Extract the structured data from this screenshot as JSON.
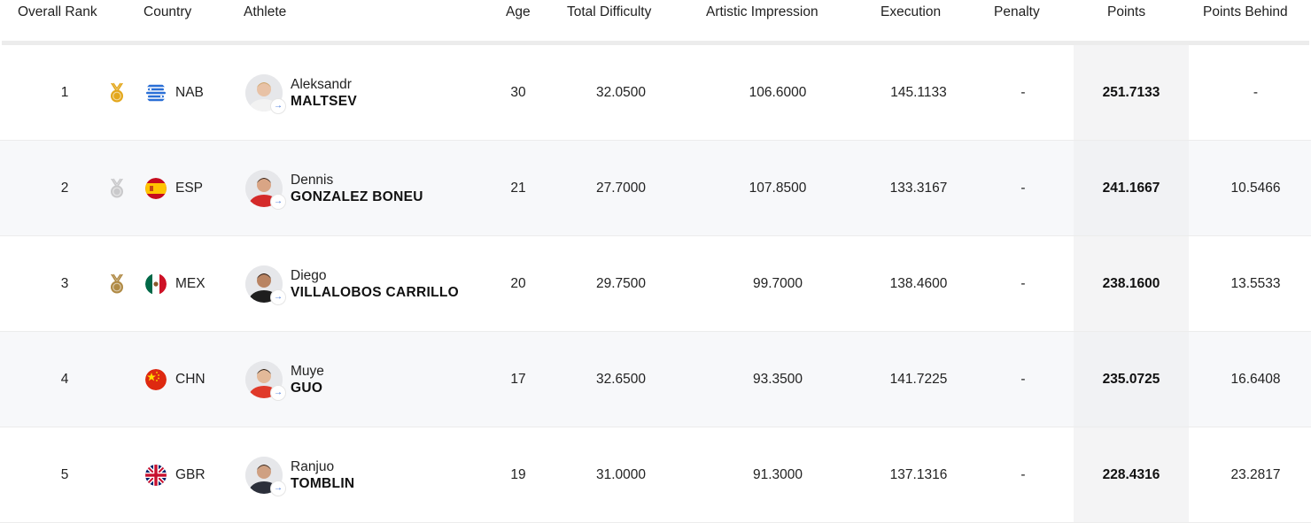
{
  "columns": {
    "rank": "Overall Rank",
    "country": "Country",
    "athlete": "Athlete",
    "age": "Age",
    "difficulty": "Total Difficulty",
    "artistic": "Artistic Impression",
    "execution": "Execution",
    "penalty": "Penalty",
    "points": "Points",
    "behind": "Points Behind"
  },
  "rows": [
    {
      "rank": "1",
      "medal": "gold-medal-icon",
      "flag": "nab-flag-icon",
      "country": "NAB",
      "given": "Aleksandr",
      "family": "MALTSEV",
      "age": "30",
      "difficulty": "32.0500",
      "artistic": "106.6000",
      "execution": "145.1133",
      "penalty": "-",
      "points": "251.7133",
      "behind": "-"
    },
    {
      "rank": "2",
      "medal": "silver-medal-icon",
      "flag": "spain-flag-icon",
      "country": "ESP",
      "given": "Dennis",
      "family": "GONZALEZ BONEU",
      "age": "21",
      "difficulty": "27.7000",
      "artistic": "107.8500",
      "execution": "133.3167",
      "penalty": "-",
      "points": "241.1667",
      "behind": "10.5466"
    },
    {
      "rank": "3",
      "medal": "bronze-medal-icon",
      "flag": "mexico-flag-icon",
      "country": "MEX",
      "given": "Diego",
      "family": "VILLALOBOS CARRILLO",
      "age": "20",
      "difficulty": "29.7500",
      "artistic": "99.7000",
      "execution": "138.4600",
      "penalty": "-",
      "points": "238.1600",
      "behind": "13.5533"
    },
    {
      "rank": "4",
      "medal": "",
      "flag": "china-flag-icon",
      "country": "CHN",
      "given": "Muye",
      "family": "GUO",
      "age": "17",
      "difficulty": "32.6500",
      "artistic": "93.3500",
      "execution": "141.7225",
      "penalty": "-",
      "points": "235.0725",
      "behind": "16.6408"
    },
    {
      "rank": "5",
      "medal": "",
      "flag": "uk-flag-icon",
      "country": "GBR",
      "given": "Ranjuo",
      "family": "TOMBLIN",
      "age": "19",
      "difficulty": "31.0000",
      "artistic": "91.3000",
      "execution": "137.1316",
      "penalty": "-",
      "points": "228.4316",
      "behind": "23.2817"
    }
  ],
  "colors": {
    "gold": "#e3a71c",
    "silver": "#c9c9cb",
    "bronze": "#b08a45",
    "link_arrow": "#3a6fd8",
    "points_column_bg": "#f4f4f5"
  }
}
